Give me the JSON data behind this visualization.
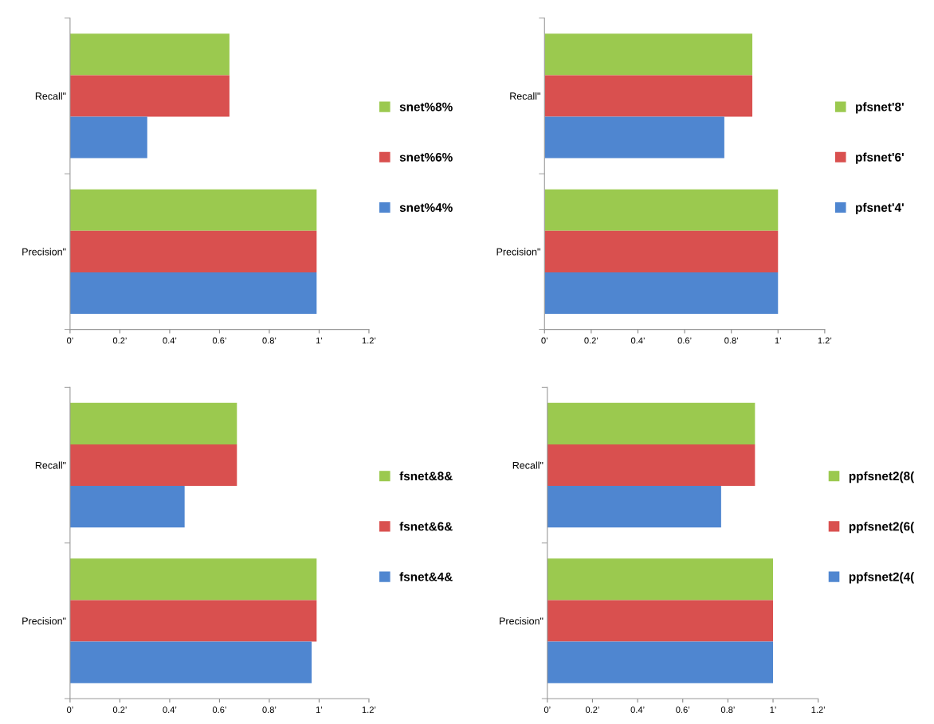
{
  "chart_data": [
    {
      "type": "bar",
      "orientation": "horizontal",
      "categories": [
        "Recall\"",
        "Precision\""
      ],
      "xlim": [
        0,
        1.2
      ],
      "xticks": [
        {
          "value": 0,
          "label": "0’"
        },
        {
          "value": 0.2,
          "label": "0.2’"
        },
        {
          "value": 0.4,
          "label": "0.4’"
        },
        {
          "value": 0.6,
          "label": "0.6’"
        },
        {
          "value": 0.8,
          "label": "0.8’"
        },
        {
          "value": 1,
          "label": "1’"
        },
        {
          "value": 1.2,
          "label": "1.2’"
        }
      ],
      "legend": "right",
      "grid": false,
      "series": [
        {
          "name": "snet%8%",
          "color": "#9bc94f",
          "values": [
            0.64,
            0.99
          ]
        },
        {
          "name": "snet%6%",
          "color": "#d9504f",
          "values": [
            0.64,
            0.99
          ]
        },
        {
          "name": "snet%4%",
          "color": "#4f86d0",
          "values": [
            0.31,
            0.99
          ]
        }
      ]
    },
    {
      "type": "bar",
      "orientation": "horizontal",
      "categories": [
        "Recall\"",
        "Precision\""
      ],
      "xlim": [
        0,
        1.2
      ],
      "xticks": [
        {
          "value": 0,
          "label": "0’"
        },
        {
          "value": 0.2,
          "label": "0.2’"
        },
        {
          "value": 0.4,
          "label": "0.4’"
        },
        {
          "value": 0.6,
          "label": "0.6’"
        },
        {
          "value": 0.8,
          "label": "0.8’"
        },
        {
          "value": 1,
          "label": "1’"
        },
        {
          "value": 1.2,
          "label": "1.2’"
        }
      ],
      "legend": "right",
      "grid": false,
      "series": [
        {
          "name": "pfsnet'8'",
          "color": "#9bc94f",
          "values": [
            0.89,
            1.0
          ]
        },
        {
          "name": "pfsnet'6'",
          "color": "#d9504f",
          "values": [
            0.89,
            1.0
          ]
        },
        {
          "name": "pfsnet'4'",
          "color": "#4f86d0",
          "values": [
            0.77,
            1.0
          ]
        }
      ]
    },
    {
      "type": "bar",
      "orientation": "horizontal",
      "categories": [
        "Recall\"",
        "Precision\""
      ],
      "xlim": [
        0,
        1.2
      ],
      "xticks": [
        {
          "value": 0,
          "label": "0’"
        },
        {
          "value": 0.2,
          "label": "0.2’"
        },
        {
          "value": 0.4,
          "label": "0.4’"
        },
        {
          "value": 0.6,
          "label": "0.6’"
        },
        {
          "value": 0.8,
          "label": "0.8’"
        },
        {
          "value": 1,
          "label": "1’"
        },
        {
          "value": 1.2,
          "label": "1.2’"
        }
      ],
      "legend": "right",
      "grid": false,
      "series": [
        {
          "name": "fsnet&8&",
          "color": "#9bc94f",
          "values": [
            0.67,
            0.99
          ]
        },
        {
          "name": "fsnet&6&",
          "color": "#d9504f",
          "values": [
            0.67,
            0.99
          ]
        },
        {
          "name": "fsnet&4&",
          "color": "#4f86d0",
          "values": [
            0.46,
            0.97
          ]
        }
      ]
    },
    {
      "type": "bar",
      "orientation": "horizontal",
      "categories": [
        "Recall\"",
        "Precision\""
      ],
      "xlim": [
        0,
        1.2
      ],
      "xticks": [
        {
          "value": 0,
          "label": "0’"
        },
        {
          "value": 0.2,
          "label": "0.2’"
        },
        {
          "value": 0.4,
          "label": "0.4’"
        },
        {
          "value": 0.6,
          "label": "0.6’"
        },
        {
          "value": 0.8,
          "label": "0.8’"
        },
        {
          "value": 1,
          "label": "1’"
        },
        {
          "value": 1.2,
          "label": "1.2’"
        }
      ],
      "legend": "right",
      "grid": false,
      "series": [
        {
          "name": "ppfsnet2(8(",
          "color": "#9bc94f",
          "values": [
            0.92,
            1.0
          ]
        },
        {
          "name": "ppfsnet2(6(",
          "color": "#d9504f",
          "values": [
            0.92,
            1.0
          ]
        },
        {
          "name": "ppfsnet2(4(",
          "color": "#4f86d0",
          "values": [
            0.77,
            1.0
          ]
        }
      ]
    }
  ]
}
